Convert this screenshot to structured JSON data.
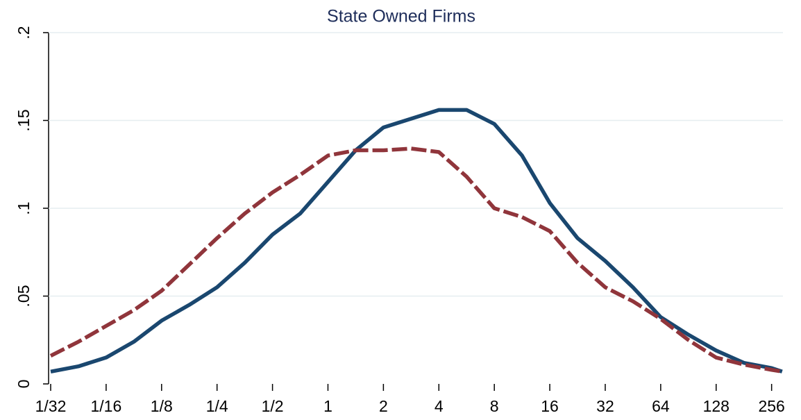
{
  "chart_data": {
    "type": "line",
    "title": "State Owned Firms",
    "x": [
      0.03125,
      0.0442,
      0.0625,
      0.0884,
      0.125,
      0.1768,
      0.25,
      0.3536,
      0.5,
      0.7071,
      1,
      1.4142,
      2,
      2.8284,
      4,
      5.6569,
      8,
      11.3137,
      16,
      22.627,
      32,
      45.255,
      64,
      90.51,
      128,
      181.02,
      256,
      292
    ],
    "series": [
      {
        "color": "#1a476f",
        "dash": false,
        "values": [
          0.007,
          0.01,
          0.015,
          0.024,
          0.036,
          0.045,
          0.055,
          0.069,
          0.085,
          0.097,
          0.115,
          0.133,
          0.146,
          0.151,
          0.156,
          0.156,
          0.148,
          0.13,
          0.103,
          0.083,
          0.07,
          0.055,
          0.038,
          0.028,
          0.019,
          0.012,
          0.009,
          0.007
        ]
      },
      {
        "color": "#90353b",
        "dash": true,
        "values": [
          0.016,
          0.024,
          0.033,
          0.042,
          0.053,
          0.068,
          0.083,
          0.097,
          0.109,
          0.119,
          0.13,
          0.133,
          0.133,
          0.134,
          0.132,
          0.118,
          0.1,
          0.095,
          0.087,
          0.069,
          0.055,
          0.047,
          0.037,
          0.025,
          0.015,
          0.011,
          0.008,
          0.007
        ]
      }
    ],
    "xscale": "log",
    "xlim": [
      0.03125,
      295
    ],
    "xticks": [
      {
        "value": 0.03125,
        "label": "1/32"
      },
      {
        "value": 0.0625,
        "label": "1/16"
      },
      {
        "value": 0.125,
        "label": "1/8"
      },
      {
        "value": 0.25,
        "label": "1/4"
      },
      {
        "value": 0.5,
        "label": "1/2"
      },
      1,
      2,
      4,
      8,
      16,
      32,
      64,
      128,
      256
    ],
    "ylim": [
      0,
      0.2
    ],
    "yticks": [
      0,
      {
        "value": 0.05,
        "label": ".05"
      },
      {
        "value": 0.1,
        "label": ".1"
      },
      {
        "value": 0.15,
        "label": ".15"
      },
      {
        "value": 0.2,
        "label": ".2"
      }
    ],
    "grid": true
  }
}
